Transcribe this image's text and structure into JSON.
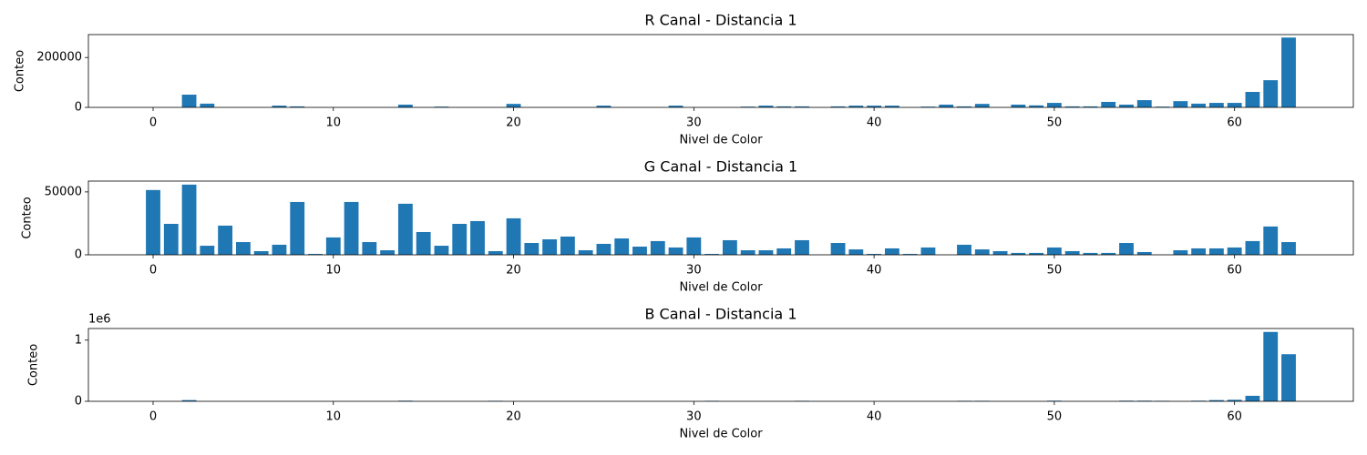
{
  "chart_data": [
    {
      "type": "bar",
      "title": "R Canal - Distancia 1",
      "xlabel": "Nivel de Color",
      "ylabel": "Conteo",
      "color": "#1f77b4",
      "x": [
        0,
        1,
        2,
        3,
        4,
        5,
        6,
        7,
        8,
        9,
        10,
        11,
        12,
        13,
        14,
        15,
        16,
        17,
        18,
        19,
        20,
        21,
        22,
        23,
        24,
        25,
        26,
        27,
        28,
        29,
        30,
        31,
        32,
        33,
        34,
        35,
        36,
        37,
        38,
        39,
        40,
        41,
        42,
        43,
        44,
        45,
        46,
        47,
        48,
        49,
        50,
        51,
        52,
        53,
        54,
        55,
        56,
        57,
        58,
        59,
        60,
        61,
        62,
        63
      ],
      "values": [
        0,
        0,
        51000,
        15000,
        0,
        0,
        0,
        7000,
        4000,
        0,
        0,
        0,
        0,
        0,
        11000,
        0,
        3000,
        0,
        0,
        0,
        14000,
        0,
        0,
        0,
        0,
        7000,
        0,
        0,
        0,
        7000,
        0,
        0,
        0,
        3000,
        7000,
        4000,
        4000,
        0,
        4000,
        7000,
        7000,
        7000,
        0,
        3000,
        11000,
        4000,
        14000,
        0,
        11000,
        8000,
        18000,
        4000,
        4000,
        22000,
        11000,
        29000,
        3000,
        25000,
        15000,
        18000,
        18000,
        62000,
        109000,
        280000
      ],
      "xlim": [
        -3.59,
        66.59
      ],
      "ylim": [
        0,
        292000
      ],
      "xticks": [
        0,
        10,
        20,
        30,
        40,
        50,
        60
      ],
      "yticks": [
        0,
        200000
      ]
    },
    {
      "type": "bar",
      "title": "G Canal - Distancia 1",
      "xlabel": "Nivel de Color",
      "ylabel": "Conteo",
      "color": "#1f77b4",
      "x": [
        0,
        1,
        2,
        3,
        4,
        5,
        6,
        7,
        8,
        9,
        10,
        11,
        12,
        13,
        14,
        15,
        16,
        17,
        18,
        19,
        20,
        21,
        22,
        23,
        24,
        25,
        26,
        27,
        28,
        29,
        30,
        31,
        32,
        33,
        34,
        35,
        36,
        37,
        38,
        39,
        40,
        41,
        42,
        43,
        44,
        45,
        46,
        47,
        48,
        49,
        50,
        51,
        52,
        53,
        54,
        55,
        56,
        57,
        58,
        59,
        60,
        61,
        62,
        63
      ],
      "values": [
        51500,
        24600,
        55800,
        7200,
        23200,
        10100,
        2900,
        8000,
        42000,
        700,
        13800,
        42000,
        10100,
        3600,
        40600,
        18100,
        7200,
        24600,
        26800,
        2900,
        29000,
        9400,
        12300,
        14500,
        3600,
        8700,
        13000,
        6500,
        10900,
        5800,
        13800,
        700,
        11600,
        3600,
        3600,
        5100,
        11600,
        0,
        9400,
        4300,
        700,
        5100,
        700,
        5800,
        0,
        8000,
        4300,
        2900,
        1500,
        1500,
        5800,
        2900,
        1500,
        1500,
        9400,
        2200,
        0,
        3600,
        5100,
        5100,
        5800,
        10900,
        22500,
        10100
      ],
      "xlim": [
        -3.59,
        66.59
      ],
      "ylim": [
        0,
        58600
      ],
      "xticks": [
        0,
        10,
        20,
        30,
        40,
        50,
        60
      ],
      "yticks": [
        0,
        50000
      ]
    },
    {
      "type": "bar",
      "title": "B Canal - Distancia 1",
      "xlabel": "Nivel de Color",
      "ylabel": "Conteo",
      "color": "#1f77b4",
      "y_offset_label": "1e6",
      "x": [
        0,
        1,
        2,
        3,
        4,
        5,
        6,
        7,
        8,
        9,
        10,
        11,
        12,
        13,
        14,
        15,
        16,
        17,
        18,
        19,
        20,
        21,
        22,
        23,
        24,
        25,
        26,
        27,
        28,
        29,
        30,
        31,
        32,
        33,
        34,
        35,
        36,
        37,
        38,
        39,
        40,
        41,
        42,
        43,
        44,
        45,
        46,
        47,
        48,
        49,
        50,
        51,
        52,
        53,
        54,
        55,
        56,
        57,
        58,
        59,
        60,
        61,
        62,
        63
      ],
      "values": [
        0,
        0,
        20000,
        0,
        0,
        0,
        0,
        0,
        0,
        0,
        0,
        0,
        0,
        0,
        10000,
        0,
        0,
        0,
        0,
        8000,
        0,
        0,
        0,
        0,
        0,
        0,
        0,
        0,
        0,
        0,
        0,
        8000,
        0,
        0,
        0,
        0,
        8000,
        0,
        0,
        0,
        0,
        0,
        0,
        0,
        0,
        8000,
        8000,
        0,
        0,
        0,
        10000,
        0,
        0,
        0,
        10000,
        10000,
        8000,
        0,
        10000,
        20000,
        25000,
        90000,
        1134000,
        770000
      ],
      "xlim": [
        -3.59,
        66.59
      ],
      "ylim": [
        0,
        1190000
      ],
      "xticks": [
        0,
        10,
        20,
        30,
        40,
        50,
        60
      ],
      "yticks": [
        0,
        {
          "value": 1000000,
          "label": "1"
        }
      ]
    }
  ]
}
